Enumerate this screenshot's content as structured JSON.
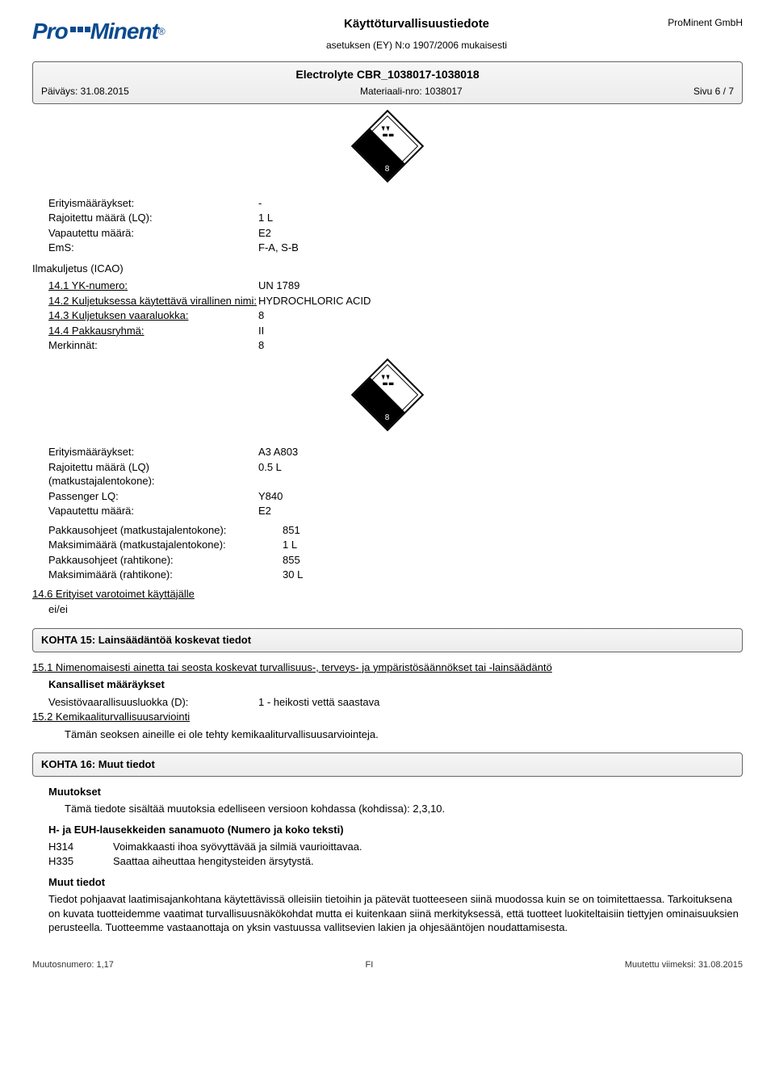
{
  "header": {
    "logo_pro": "Pro",
    "logo_minent": "Minent",
    "logo_reg": "®",
    "company": "ProMinent GmbH",
    "doc_title": "Käyttöturvallisuustiedote",
    "doc_sub": "asetuksen (EY) N:o 1907/2006 mukaisesti",
    "product": "Electrolyte CBR_1038017-1038018",
    "date_label": "Päiväys: 31.08.2015",
    "material_label": "Materiaali-nro: 1038017",
    "page_label": "Sivu 6 / 7"
  },
  "hazard_number": "8",
  "section14_top": {
    "rows": [
      {
        "label": "Erityismääräykset:",
        "value": "-"
      },
      {
        "label": "Rajoitettu määrä (LQ):",
        "value": "1 L"
      },
      {
        "label": "Vapautettu määrä:",
        "value": "E2"
      },
      {
        "label": "EmS:",
        "value": "F-A, S-B"
      }
    ]
  },
  "icao_title": "Ilmakuljetus (ICAO)",
  "icao": {
    "rows": [
      {
        "label": "14.1 YK-numero:",
        "underline": true,
        "value": "UN 1789"
      },
      {
        "label": "14.2 Kuljetuksessa käytettävä virallinen nimi:",
        "underline": true,
        "value": "HYDROCHLORIC ACID"
      },
      {
        "label": "14.3 Kuljetuksen vaaraluokka:",
        "underline": true,
        "value": "8"
      },
      {
        "label": "14.4 Pakkausryhmä:",
        "underline": true,
        "value": "II"
      },
      {
        "label": "Merkinnät:",
        "underline": false,
        "value": "8"
      }
    ]
  },
  "icao_extra_left": {
    "rows": [
      {
        "label": "Erityismääräykset:",
        "value": "A3 A803"
      },
      {
        "label": "Rajoitettu määrä (LQ) (matkustajalentokone):",
        "value": "0.5 L"
      },
      {
        "label": "Passenger LQ:",
        "value": "Y840"
      },
      {
        "label": "Vapautettu määrä:",
        "value": "E2"
      }
    ]
  },
  "icao_extra_right": {
    "rows": [
      {
        "label": "Pakkausohjeet (matkustajalentokone):",
        "value": "851"
      },
      {
        "label": "Maksimimäärä (matkustajalentokone):",
        "value": "1 L"
      },
      {
        "label": "Pakkausohjeet (rahtikone):",
        "value": "855"
      },
      {
        "label": "Maksimimäärä (rahtikone):",
        "value": "30 L"
      }
    ]
  },
  "section14_6": {
    "title": "14.6 Erityiset varotoimet käyttäjälle",
    "value": "ei/ei"
  },
  "section15": {
    "bar": "KOHTA 15: Lainsäädäntöä koskevat tiedot",
    "s15_1": "15.1 Nimenomaisesti ainetta tai seosta koskevat turvallisuus-, terveys- ja ympäristösäännökset tai -lainsäädäntö",
    "national": "Kansalliset määräykset",
    "water_label": "Vesistövaarallisuusluokka (D):",
    "water_val": "1 - heikosti vettä saastava",
    "s15_2": "15.2 Kemikaaliturvallisuusarviointi",
    "s15_2_text": "Tämän seoksen aineille ei ole tehty kemikaaliturvallisuusarviointeja."
  },
  "section16": {
    "bar": "KOHTA 16: Muut tiedot",
    "changes_title": "Muutokset",
    "changes_text": "Tämä tiedote sisältää muutoksia edelliseen versioon kohdassa (kohdissa): 2,3,10.",
    "hlines_title": "H- ja EUH-lausekkeiden sanamuoto (Numero ja koko teksti)",
    "hcodes": [
      {
        "code": "H314",
        "text": "Voimakkaasti ihoa syövyttävää ja silmiä vaurioittavaa."
      },
      {
        "code": "H335",
        "text": "Saattaa aiheuttaa hengitysteiden ärsytystä."
      }
    ],
    "other_title": "Muut tiedot",
    "other_text": "Tiedot pohjaavat laatimisajankohtana käytettävissä olleisiin tietoihin ja pätevät tuotteeseen siinä muodossa kuin se on toimitettaessa. Tarkoituksena on kuvata tuotteidemme vaatimat turvallisuusnäkökohdat mutta ei kuitenkaan siinä merkityksessä, että tuotteet luokiteltaisiin tiettyjen ominaisuuksien perusteella. Tuotteemme vastaanottaja on yksin vastuussa vallitsevien lakien ja ohjesääntöjen noudattamisesta."
  },
  "footer": {
    "left": "Muutosnumero: 1,17",
    "mid": "FI",
    "right": "Muutettu viimeksi: 31.08.2015"
  }
}
